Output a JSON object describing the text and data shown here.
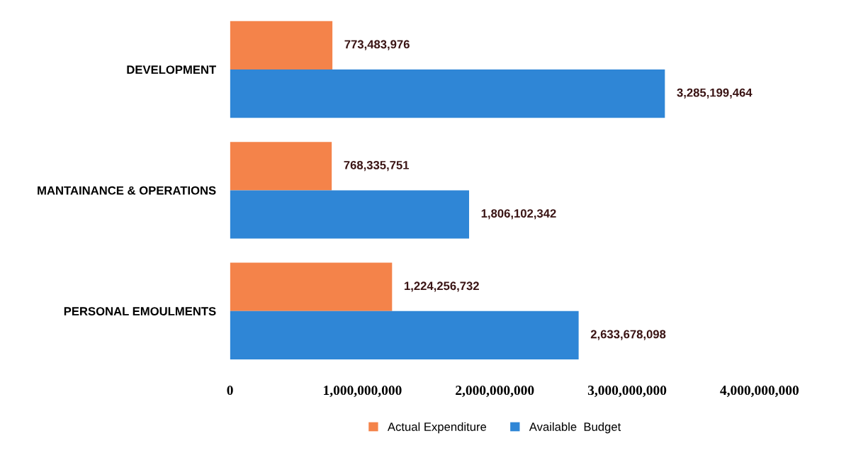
{
  "chart_data": {
    "type": "bar",
    "orientation": "horizontal",
    "categories": [
      "DEVELOPMENT",
      "MANTAINANCE & OPERATIONS",
      "PERSONAL EMOULMENTS"
    ],
    "series": [
      {
        "name": "Actual Expenditure",
        "color": "#f4834a",
        "values": [
          773483976,
          768335751,
          1224256732
        ],
        "value_labels": [
          "773,483,976",
          "768,335,751",
          "1,224,256,732"
        ]
      },
      {
        "name": "Available  Budget",
        "color": "#2f86d6",
        "values": [
          3285199464,
          1806102342,
          2633678098
        ],
        "value_labels": [
          "3,285,199,464",
          "1,806,102,342",
          "2,633,678,098"
        ]
      }
    ],
    "xlim": [
      0,
      4000000000
    ],
    "xticks": [
      0,
      {
        "value": 1000000000,
        "label": "1,000,000,000"
      },
      {
        "value": 2000000000,
        "label": "2,000,000,000"
      },
      {
        "value": 3000000000,
        "label": "3,000,000,000"
      },
      {
        "value": 4000000000,
        "label": "4,000,000,000"
      }
    ],
    "grid": false,
    "legend": "bottom"
  }
}
